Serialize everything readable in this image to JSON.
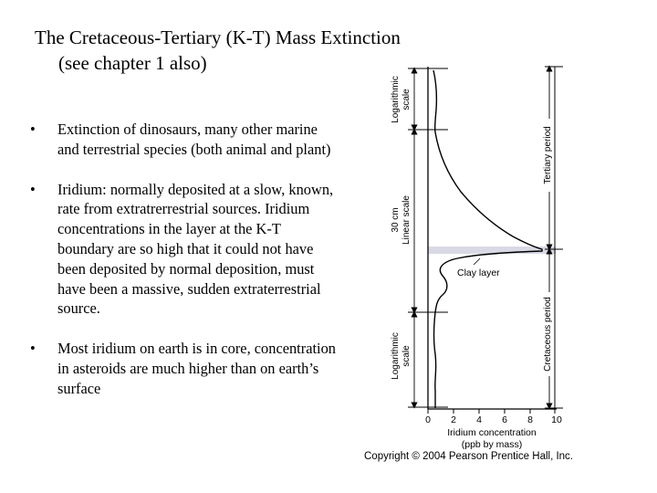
{
  "title": {
    "line1": "The Cretaceous-Tertiary (K-T) Mass Extinction",
    "line2": "(see chapter 1 also)"
  },
  "bullets": [
    {
      "symbol": "•",
      "text": "Extinction of dinosaurs, many other marine and terrestrial species (both animal and plant)"
    },
    {
      "symbol": "•",
      "text": "Iridium: normally deposited at a slow, known, rate from extratrerrestrial sources. Iridium concentrations in the layer at the K-T boundary are so high that it could not have been deposited by normal deposition, must have been a massive, sudden extraterrestrial source."
    },
    {
      "symbol": "•",
      "text": "Most iridium on earth is in core, concentration in asteroids are much higher than on earth’s surface"
    }
  ],
  "figure": {
    "left_labels": {
      "top_log": [
        "Logarithmic",
        "scale"
      ],
      "linear": [
        "30 cm",
        "Linear scale"
      ],
      "bottom_log": [
        "Logarithmic",
        "scale"
      ]
    },
    "right_labels": {
      "tertiary": "Tertiary period",
      "cretaceous": "Cretaceous period"
    },
    "clay_label": "Clay layer",
    "x_ticks": [
      "0",
      "2",
      "4",
      "6",
      "8",
      "10"
    ],
    "x_label": [
      "Iridium concentration",
      "(ppb by mass)"
    ],
    "copyright": "Copyright © 2004 Pearson Prentice Hall, Inc.",
    "colors": {
      "clay_band": "#d9d9e6",
      "line": "#000000"
    }
  }
}
